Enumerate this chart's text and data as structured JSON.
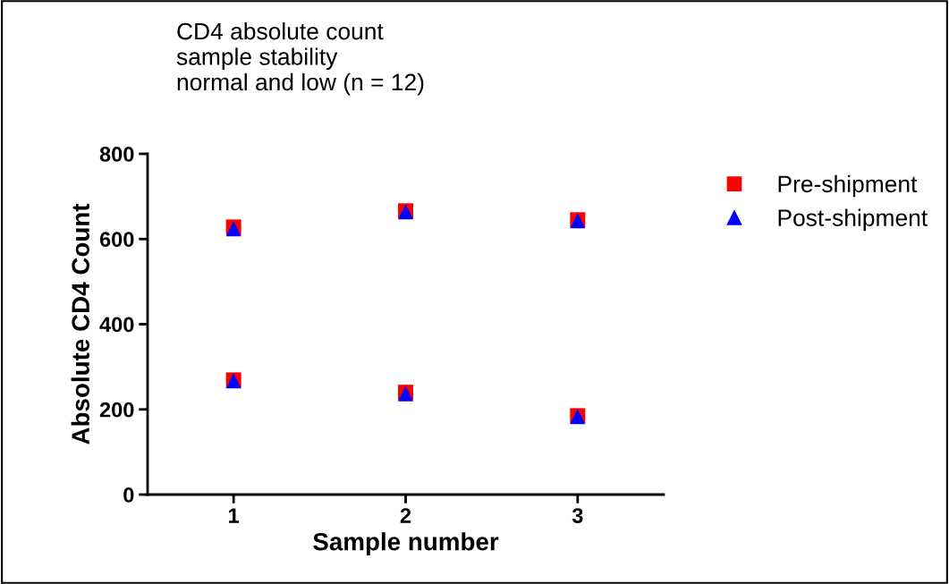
{
  "chart_data": {
    "type": "scatter",
    "title": "CD4 absolute count\nsample stability\nnormal and low (n = 12)",
    "xlabel": "Sample number",
    "ylabel": "Absolute CD4 Count",
    "x": [
      1,
      1,
      2,
      2,
      3,
      3
    ],
    "series": [
      {
        "name": "Pre-shipment",
        "color": "#ff0000",
        "marker": "square",
        "values": [
          628,
          269,
          666,
          240,
          645,
          185
        ]
      },
      {
        "name": "Post-shipment",
        "color": "#0000ff",
        "marker": "triangle",
        "values": [
          624,
          267,
          664,
          237,
          643,
          183
        ]
      }
    ],
    "xlim": [
      0.5,
      3.5
    ],
    "xticks": [
      1,
      2,
      3
    ],
    "ylim": [
      0,
      800
    ],
    "yticks": [
      0,
      200,
      400,
      600,
      800
    ],
    "grid": false,
    "legend": "top right"
  }
}
